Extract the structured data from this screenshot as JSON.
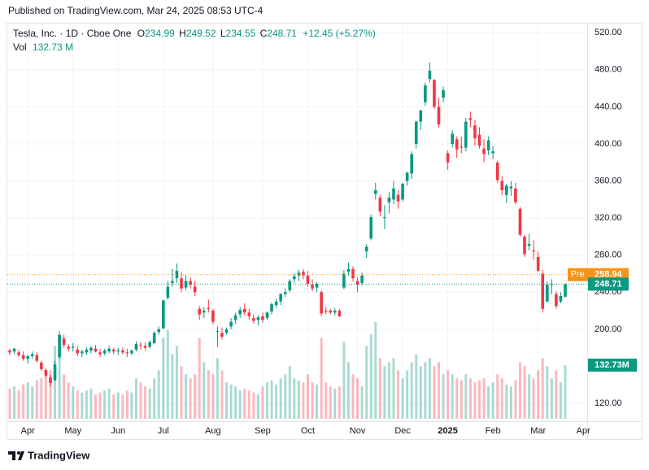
{
  "header": {
    "published": "Published on TradingView.com, Mar 24, 2025 08:53 UTC-4"
  },
  "legend": {
    "symbol": "Tesla, Inc. · 1D · Cboe One",
    "ohlc": [
      {
        "label": "O",
        "value": "234.99"
      },
      {
        "label": "H",
        "value": "249.52"
      },
      {
        "label": "L",
        "value": "234.55"
      },
      {
        "label": "C",
        "value": "248.71"
      }
    ],
    "change": "+12.45 (+5.27%)",
    "volume_label": "Vol",
    "volume_value": "132.73 M"
  },
  "chart_data": {
    "type": "candlestick",
    "categories": [
      null,
      null,
      null,
      null,
      "Apr",
      null,
      null,
      null,
      null,
      null,
      null,
      null,
      null,
      null,
      "May",
      null,
      null,
      null,
      null,
      null,
      null,
      null,
      null,
      null,
      "Jun",
      null,
      null,
      null,
      null,
      null,
      null,
      null,
      null,
      null,
      "Jul",
      null,
      null,
      null,
      null,
      null,
      null,
      null,
      null,
      null,
      null,
      "Aug",
      null,
      null,
      null,
      null,
      null,
      null,
      null,
      null,
      null,
      null,
      "Sep",
      null,
      null,
      null,
      null,
      null,
      null,
      null,
      null,
      null,
      "Oct",
      null,
      null,
      null,
      null,
      null,
      null,
      null,
      null,
      null,
      null,
      "Nov",
      null,
      null,
      null,
      null,
      null,
      null,
      null,
      null,
      null,
      "Dec",
      null,
      null,
      null,
      null,
      null,
      null,
      null,
      null,
      null,
      "2025",
      null,
      null,
      null,
      null,
      null,
      null,
      null,
      null,
      null,
      "Feb",
      null,
      null,
      null,
      null,
      null,
      null,
      null,
      null,
      null,
      "Mar",
      null,
      null,
      null,
      null,
      null,
      null
    ],
    "next_label": "Apr",
    "ohlc": [
      [
        177,
        179,
        172,
        175
      ],
      [
        176,
        180,
        173,
        179
      ],
      [
        175,
        178,
        170,
        172
      ],
      [
        172,
        176,
        166,
        168
      ],
      [
        168,
        172,
        163,
        171
      ],
      [
        171,
        176,
        168,
        173
      ],
      [
        172,
        175,
        164,
        166
      ],
      [
        164,
        166,
        155,
        157
      ],
      [
        156,
        158,
        148,
        150
      ],
      [
        148,
        151,
        138,
        142
      ],
      [
        145,
        166,
        144,
        162
      ],
      [
        170,
        198,
        168,
        194
      ],
      [
        190,
        194,
        180,
        183
      ],
      [
        181,
        184,
        176,
        179
      ],
      [
        180,
        185,
        176,
        181
      ],
      [
        178,
        182,
        171,
        174
      ],
      [
        174,
        178,
        170,
        176
      ],
      [
        175,
        180,
        172,
        178
      ],
      [
        177,
        182,
        174,
        180
      ],
      [
        179,
        183,
        175,
        176
      ],
      [
        175,
        179,
        170,
        173
      ],
      [
        174,
        179,
        172,
        177
      ],
      [
        176,
        182,
        174,
        179
      ],
      [
        178,
        180,
        173,
        176
      ],
      [
        176,
        180,
        172,
        177
      ],
      [
        177,
        180,
        173,
        175
      ],
      [
        175,
        179,
        170,
        174
      ],
      [
        174,
        178,
        172,
        177
      ],
      [
        178,
        187,
        176,
        184
      ],
      [
        183,
        186,
        178,
        182
      ],
      [
        182,
        186,
        177,
        180
      ],
      [
        181,
        188,
        179,
        186
      ],
      [
        185,
        198,
        184,
        196
      ],
      [
        197,
        203,
        194,
        200
      ],
      [
        201,
        232,
        200,
        231
      ],
      [
        234,
        252,
        232,
        246
      ],
      [
        250,
        265,
        246,
        252
      ],
      [
        255,
        271,
        250,
        263
      ],
      [
        255,
        262,
        240,
        244
      ],
      [
        245,
        258,
        242,
        252
      ],
      [
        252,
        256,
        244,
        248
      ],
      [
        246,
        252,
        236,
        240
      ],
      [
        222,
        225,
        210,
        216
      ],
      [
        218,
        224,
        212,
        220
      ],
      [
        223,
        232,
        218,
        222
      ],
      [
        220,
        222,
        205,
        208
      ],
      [
        198,
        203,
        181,
        198
      ],
      [
        196,
        202,
        189,
        192
      ],
      [
        196,
        202,
        194,
        200
      ],
      [
        203,
        212,
        200,
        208
      ],
      [
        210,
        218,
        206,
        215
      ],
      [
        216,
        224,
        212,
        221
      ],
      [
        222,
        228,
        215,
        218
      ],
      [
        218,
        222,
        210,
        214
      ],
      [
        212,
        216,
        206,
        209
      ],
      [
        210,
        215,
        204,
        213
      ],
      [
        214,
        218,
        207,
        210
      ],
      [
        212,
        219,
        210,
        218
      ],
      [
        219,
        229,
        216,
        227
      ],
      [
        226,
        233,
        223,
        230
      ],
      [
        230,
        239,
        226,
        238
      ],
      [
        238,
        244,
        235,
        240
      ],
      [
        242,
        254,
        240,
        252
      ],
      [
        254,
        260,
        250,
        257
      ],
      [
        258,
        264,
        252,
        261
      ],
      [
        262,
        265,
        254,
        258
      ],
      [
        258,
        263,
        246,
        249
      ],
      [
        248,
        254,
        241,
        244
      ],
      [
        245,
        251,
        240,
        249
      ],
      [
        240,
        242,
        214,
        217
      ],
      [
        220,
        224,
        216,
        219
      ],
      [
        220,
        222,
        216,
        218
      ],
      [
        218,
        223,
        215,
        220
      ],
      [
        220,
        222,
        213,
        214
      ],
      [
        245,
        264,
        243,
        260
      ],
      [
        262,
        272,
        258,
        265
      ],
      [
        265,
        268,
        252,
        255
      ],
      [
        252,
        256,
        240,
        248
      ],
      [
        250,
        261,
        247,
        258
      ],
      [
        284,
        292,
        277,
        289
      ],
      [
        298,
        324,
        296,
        321
      ],
      [
        346,
        358,
        340,
        350
      ],
      [
        342,
        345,
        322,
        327
      ],
      [
        320,
        334,
        308,
        321
      ],
      [
        337,
        348,
        325,
        342
      ],
      [
        340,
        360,
        335,
        352
      ],
      [
        345,
        350,
        330,
        338
      ],
      [
        340,
        358,
        338,
        357
      ],
      [
        360,
        370,
        355,
        369
      ],
      [
        368,
        392,
        362,
        389
      ],
      [
        400,
        425,
        395,
        424
      ],
      [
        424,
        437,
        415,
        436
      ],
      [
        445,
        466,
        441,
        463
      ],
      [
        470,
        488,
        466,
        479
      ],
      [
        469,
        470,
        438,
        440
      ],
      [
        440,
        450,
        418,
        421
      ],
      [
        450,
        462,
        445,
        458
      ],
      [
        390,
        393,
        372,
        380
      ],
      [
        400,
        415,
        396,
        411
      ],
      [
        405,
        408,
        385,
        394
      ],
      [
        397,
        408,
        390,
        396
      ],
      [
        396,
        428,
        392,
        424
      ],
      [
        428,
        435,
        418,
        426
      ],
      [
        420,
        426,
        398,
        406
      ],
      [
        410,
        418,
        395,
        398
      ],
      [
        395,
        405,
        380,
        389
      ],
      [
        393,
        408,
        388,
        404
      ],
      [
        390,
        398,
        384,
        392
      ],
      [
        380,
        382,
        358,
        361
      ],
      [
        360,
        365,
        345,
        350
      ],
      [
        345,
        357,
        336,
        355
      ],
      [
        352,
        360,
        344,
        354
      ],
      [
        352,
        358,
        335,
        337
      ],
      [
        330,
        332,
        300,
        302
      ],
      [
        300,
        302,
        278,
        281
      ],
      [
        290,
        303,
        285,
        292
      ],
      [
        285,
        296,
        275,
        284
      ],
      [
        278,
        284,
        262,
        263
      ],
      [
        260,
        264,
        218,
        222
      ],
      [
        230,
        252,
        229,
        248
      ],
      [
        248,
        254,
        238,
        249
      ],
      [
        238,
        241,
        222,
        225
      ],
      [
        230,
        240,
        228,
        236
      ],
      [
        234.99,
        249.52,
        234.55,
        248.71
      ]
    ],
    "volume": [
      75,
      80,
      70,
      85,
      90,
      80,
      95,
      100,
      110,
      120,
      180,
      200,
      110,
      90,
      80,
      70,
      65,
      70,
      75,
      60,
      65,
      70,
      75,
      60,
      65,
      60,
      70,
      65,
      100,
      90,
      80,
      75,
      100,
      120,
      200,
      220,
      160,
      180,
      130,
      110,
      100,
      110,
      200,
      140,
      120,
      110,
      150,
      120,
      90,
      85,
      80,
      70,
      75,
      70,
      65,
      60,
      80,
      90,
      95,
      85,
      100,
      110,
      130,
      100,
      95,
      90,
      110,
      90,
      85,
      200,
      90,
      80,
      75,
      80,
      190,
      140,
      110,
      100,
      80,
      180,
      210,
      240,
      150,
      130,
      140,
      150,
      120,
      100,
      120,
      140,
      160,
      130,
      140,
      150,
      130,
      140,
      110,
      120,
      110,
      100,
      95,
      110,
      100,
      90,
      95,
      100,
      80,
      90,
      110,
      100,
      85,
      80,
      95,
      140,
      130,
      110,
      100,
      120,
      150,
      130,
      100,
      120,
      90,
      132.73
    ],
    "volume_last_label": "132.73M",
    "vlim": [
      0,
      320
    ],
    "up_color": "#089981",
    "down_color": "#f23645",
    "ylim": [
      106,
      529
    ],
    "yticks": [
      {
        "value": 120,
        "label": "120.00"
      },
      {
        "value": 200,
        "label": "200.00"
      },
      {
        "value": 240,
        "label": "240.00"
      },
      {
        "value": 280,
        "label": "280.00"
      },
      {
        "value": 320,
        "label": "320.00"
      },
      {
        "value": 360,
        "label": "360.00"
      },
      {
        "value": 400,
        "label": "400.00"
      },
      {
        "value": 440,
        "label": "440.00"
      },
      {
        "value": 480,
        "label": "480.00"
      },
      {
        "value": 520,
        "label": "520.00"
      }
    ],
    "grid": true,
    "pre": {
      "name": "Pre",
      "value": 258.94,
      "label": "258.94",
      "color": "#f7931a"
    },
    "last": {
      "value": 248.71,
      "label": "248.71"
    }
  },
  "footer": {
    "brand": "TradingView"
  }
}
